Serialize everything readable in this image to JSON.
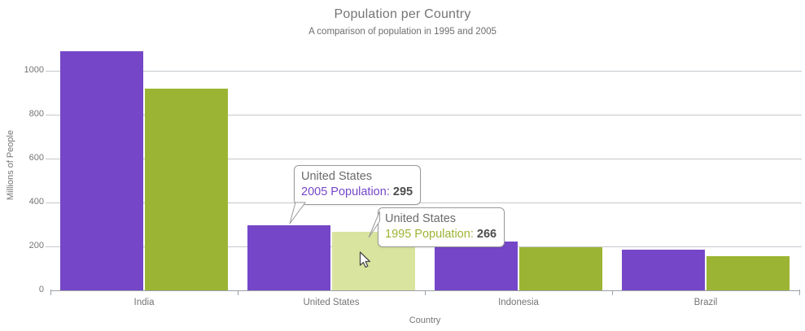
{
  "header": {
    "title": "Population per Country",
    "subtitle": "A comparison of population in 1995 and 2005"
  },
  "chart_data": {
    "type": "bar",
    "title": "Population per Country",
    "subtitle": "A comparison of population in 1995 and 2005",
    "xlabel": "Country",
    "ylabel": "Millions of People",
    "categories": [
      "India",
      "United States",
      "Indonesia",
      "Brazil"
    ],
    "series": [
      {
        "name": "2005 Population",
        "color": "#7547C8",
        "values": [
          1090,
          295,
          222,
          186
        ]
      },
      {
        "name": "1995 Population",
        "color": "#9CB433",
        "values": [
          920,
          266,
          197,
          156
        ]
      }
    ],
    "highlighted_bar": {
      "series": "1995 Population",
      "category": "United States",
      "color": "#D9E49E",
      "state": "hovered"
    },
    "yticks": [
      0,
      200,
      400,
      600,
      800,
      1000
    ],
    "ylim": [
      0,
      1100
    ],
    "grid": true,
    "legend_position": "none"
  },
  "tooltips": [
    {
      "title": "United States",
      "label": "2005 Population:",
      "value": "295",
      "label_color": "#7547C8"
    },
    {
      "title": "United States",
      "label": "1995 Population:",
      "value": "266",
      "label_color": "#9CB433"
    }
  ],
  "colors": {
    "series_2005": "#7547C8",
    "series_1995": "#9CB433",
    "hover_fill": "#D9E49E",
    "grid_line": "#C4C8CC",
    "axis_line": "#9BA1A6",
    "text": "#757575",
    "tooltip_border": "#999999",
    "tooltip_value": "#4D4D4D"
  }
}
